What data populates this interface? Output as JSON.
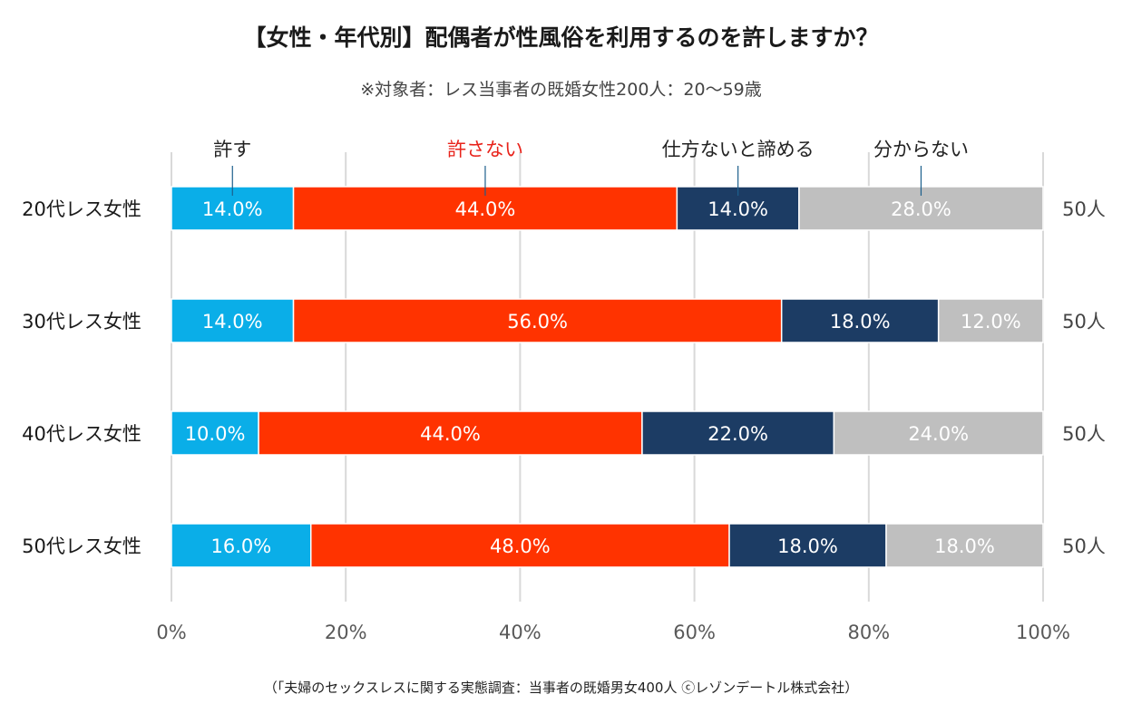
{
  "title": "【女性・年代別】配偶者が性風俗を利用するのを許しますか？",
  "subtitle": "※対象者：レス当事者の既婚女性200人：20～59歳",
  "source": "（「夫婦のセックスレスに関する実態調査：当事者の既婚男女400人 ⓒレゾンデートル株式会社）",
  "chart_data": {
    "type": "bar",
    "orientation": "horizontal",
    "stacked": true,
    "categories": [
      "20代レス女性",
      "30代レス女性",
      "40代レス女性",
      "50代レス女性"
    ],
    "series": [
      {
        "name": "許す",
        "color": "#0aaee8",
        "label_color": "#222222",
        "values": [
          14.0,
          14.0,
          10.0,
          16.0
        ]
      },
      {
        "name": "許さない",
        "color": "#ff3300",
        "label_color": "#e8231b",
        "values": [
          44.0,
          56.0,
          44.0,
          48.0
        ]
      },
      {
        "name": "仕方ないと諦める",
        "color": "#1c3c64",
        "label_color": "#222222",
        "values": [
          14.0,
          18.0,
          22.0,
          18.0
        ]
      },
      {
        "name": "分からない",
        "color": "#bfbfbf",
        "label_color": "#222222",
        "values": [
          28.0,
          12.0,
          24.0,
          18.0
        ]
      }
    ],
    "value_labels": [
      [
        "14.0%",
        "44.0%",
        "14.0%",
        "28.0%"
      ],
      [
        "14.0%",
        "56.0%",
        "18.0%",
        "12.0%"
      ],
      [
        "10.0%",
        "44.0%",
        "22.0%",
        "24.0%"
      ],
      [
        "16.0%",
        "48.0%",
        "18.0%",
        "18.0%"
      ]
    ],
    "counts": [
      "50人",
      "50人",
      "50人",
      "50人"
    ],
    "xlim": [
      0,
      100
    ],
    "xticks": [
      "0%",
      "20%",
      "40%",
      "60%",
      "80%",
      "100%"
    ],
    "grid": true,
    "legend_placement": "top, labels above first bar"
  }
}
